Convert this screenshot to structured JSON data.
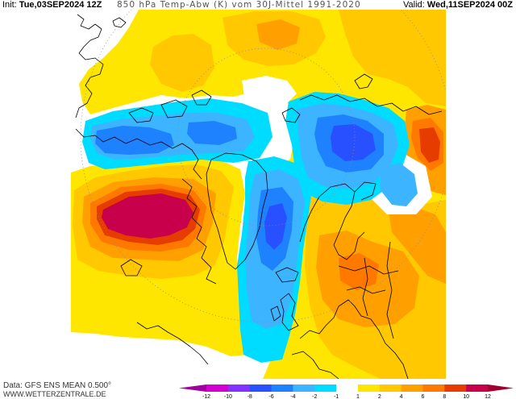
{
  "header": {
    "init_label": "Init:",
    "init_value": "Tue,03SEP2024 12Z",
    "title": "850 hPa Temp-Abw (K) vom 30J-Mittel 1991-2020",
    "valid_label": "Valid:",
    "valid_value": "Wed,11SEP2024 00Z"
  },
  "footer": {
    "data_source": "Data: GFS ENS MEAN 0.500°",
    "website": "WWW.WETTERZENTRALE.DE"
  },
  "legend": {
    "labels": [
      "-12",
      "-10",
      "-8",
      "-6",
      "-4",
      "-2",
      "-1",
      "1",
      "2",
      "4",
      "6",
      "8",
      "10",
      "12"
    ],
    "colors": [
      "#a000a0",
      "#d200d2",
      "#8232ff",
      "#2850ff",
      "#1e82ff",
      "#3cb4ff",
      "#00dcff",
      "#ffffff",
      "#ffe600",
      "#ffc800",
      "#ffa000",
      "#ff7800",
      "#e63c00",
      "#c8004b",
      "#a0002d"
    ]
  },
  "map": {
    "coastline_color": "#000000",
    "graticule_color": "#8c8c8c"
  }
}
